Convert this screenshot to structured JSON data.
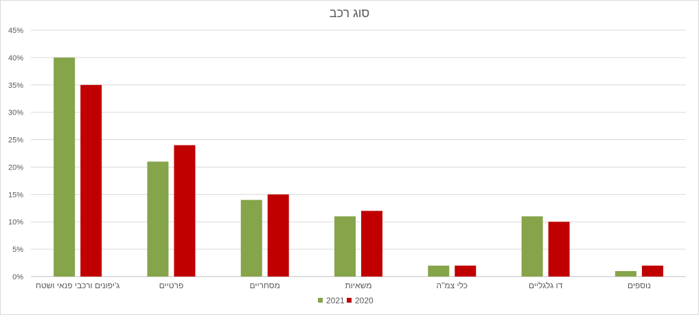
{
  "chart_data": {
    "type": "bar",
    "title": "סוג רכב",
    "categories": [
      "ג'יפונים ורכבי פנאי ושטח",
      "פרטיים",
      "מסחריים",
      "משאיות",
      "כלי צמ\"ה",
      "דו גלגליים",
      "נוספים"
    ],
    "series": [
      {
        "name": "2021",
        "color": "#86a44a",
        "values": [
          40,
          21,
          14,
          11,
          2,
          11,
          1
        ]
      },
      {
        "name": "2020",
        "color": "#c00000",
        "values": [
          35,
          24,
          15,
          12,
          2,
          10,
          2
        ]
      }
    ],
    "ylim": [
      0,
      45
    ],
    "yticks": [
      "0%",
      "5%",
      "10%",
      "15%",
      "20%",
      "25%",
      "30%",
      "35%",
      "40%",
      "45%"
    ],
    "grid": true,
    "legend_position": "bottom"
  }
}
